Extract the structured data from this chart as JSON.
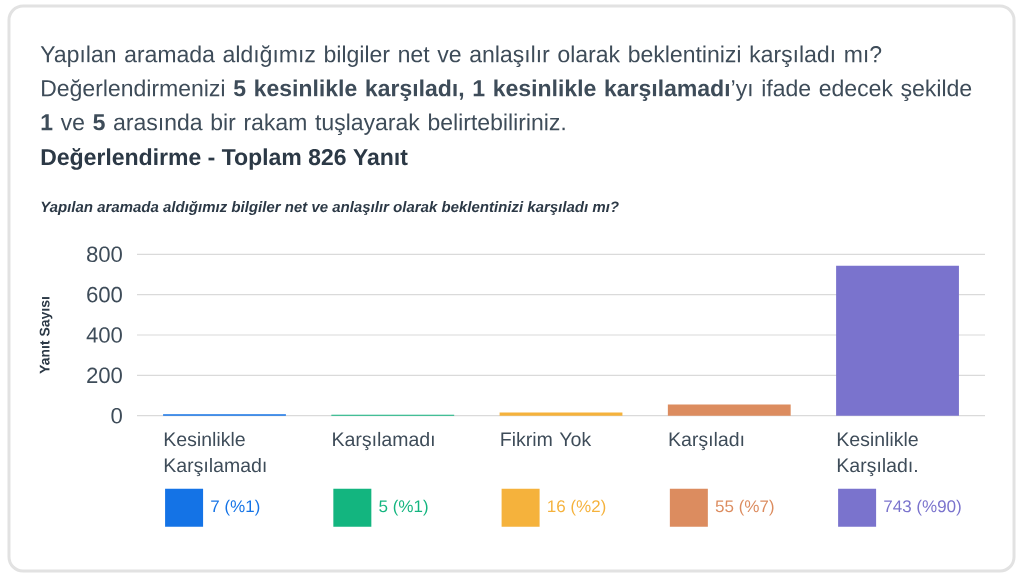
{
  "chart_data": {
    "type": "bar",
    "title": "Yapılan aramada aldığımız bilgiler net ve anlaşılır olarak beklentinizi karşıladı mı? Değerlendirmenizi **5 kesinlikle karşıladı, 1 kesinlikle karşılamadı**’yı ifade edecek şekilde **1** ve **5** arasında bir rakam tuşlayarak belirtebiliriniz.",
    "subtitle": "Değerlendirme - Toplam 826 Yanıt",
    "annotations": [
      "Yapılan aramada aldığımız bilgiler net ve anlaşılır olarak beklentinizi karşıladı mı?"
    ],
    "ylabel": "Yanıt Sayısı",
    "categories": [
      "Kesinlikle Karşılamadı",
      "Karşılamadı",
      "Fikrim Yok",
      "Karşıladı",
      "Kesinlikle Karşıladı."
    ],
    "values": [
      7,
      5,
      16,
      55,
      743
    ],
    "colors": [
      "#1473e6",
      "#13b57f",
      "#f5b23c",
      "#dc8c5f",
      "#7a73cd"
    ],
    "value_labels": [
      "7 (%1)",
      "5 (%1)",
      "16 (%2)",
      "55 (%7)",
      "743 (%90)"
    ],
    "ylim": [
      0,
      800
    ],
    "yticks": [
      0,
      200,
      400,
      600,
      800
    ],
    "grid": "y"
  }
}
